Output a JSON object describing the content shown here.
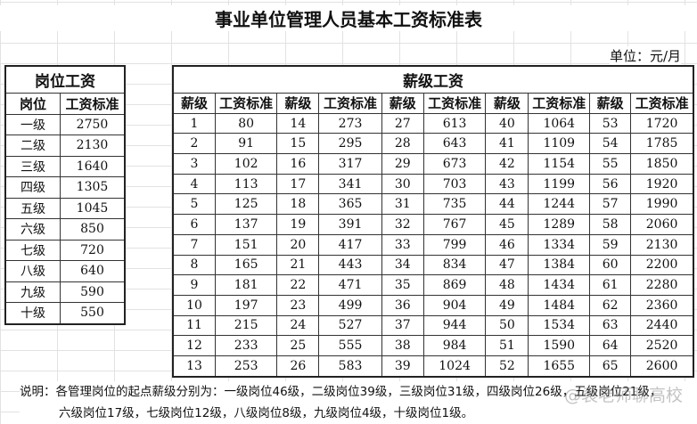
{
  "title": "事业单位管理人员基本工资标准表",
  "unit": "单位：元/月",
  "post_table": {
    "header": "岗位工资",
    "columns": [
      "岗位",
      "工资标准"
    ],
    "rows": [
      [
        "一级",
        "2750"
      ],
      [
        "二级",
        "2130"
      ],
      [
        "三级",
        "1640"
      ],
      [
        "四级",
        "1305"
      ],
      [
        "五级",
        "1045"
      ],
      [
        "六级",
        "850"
      ],
      [
        "七级",
        "720"
      ],
      [
        "八级",
        "640"
      ],
      [
        "九级",
        "590"
      ],
      [
        "十级",
        "550"
      ]
    ]
  },
  "grade_table": {
    "header": "薪级工资",
    "col_grade": "薪级",
    "col_std": "工资标准",
    "rows": [
      [
        "1",
        "80",
        "14",
        "273",
        "27",
        "613",
        "40",
        "1064",
        "53",
        "1720"
      ],
      [
        "2",
        "91",
        "15",
        "295",
        "28",
        "643",
        "41",
        "1109",
        "54",
        "1785"
      ],
      [
        "3",
        "102",
        "16",
        "317",
        "29",
        "673",
        "42",
        "1154",
        "55",
        "1850"
      ],
      [
        "4",
        "113",
        "17",
        "341",
        "30",
        "703",
        "43",
        "1199",
        "56",
        "1920"
      ],
      [
        "5",
        "125",
        "18",
        "365",
        "31",
        "735",
        "44",
        "1244",
        "57",
        "1990"
      ],
      [
        "6",
        "137",
        "19",
        "391",
        "32",
        "767",
        "45",
        "1289",
        "58",
        "2060"
      ],
      [
        "7",
        "151",
        "20",
        "417",
        "33",
        "799",
        "46",
        "1334",
        "59",
        "2130"
      ],
      [
        "8",
        "165",
        "21",
        "443",
        "34",
        "834",
        "47",
        "1384",
        "60",
        "2200"
      ],
      [
        "9",
        "181",
        "22",
        "471",
        "35",
        "869",
        "48",
        "1434",
        "61",
        "2280"
      ],
      [
        "10",
        "197",
        "23",
        "499",
        "36",
        "904",
        "49",
        "1484",
        "62",
        "2360"
      ],
      [
        "11",
        "215",
        "24",
        "527",
        "37",
        "944",
        "50",
        "1534",
        "63",
        "2440"
      ],
      [
        "12",
        "233",
        "25",
        "555",
        "38",
        "984",
        "51",
        "1590",
        "64",
        "2520"
      ],
      [
        "13",
        "253",
        "26",
        "583",
        "39",
        "1024",
        "52",
        "1655",
        "65",
        "2600"
      ]
    ]
  },
  "note": {
    "line1": "说明：各管理岗位的起点薪级分别为：一级岗位46级，二级岗位39级，三级岗位31级，四级岗位26级，五级岗位21级，",
    "line2": "六级岗位17级，七级岗位12级，八级岗位8级，九级岗位4级，十级岗位1级。"
  },
  "watermark": "@袁老师聊高校"
}
